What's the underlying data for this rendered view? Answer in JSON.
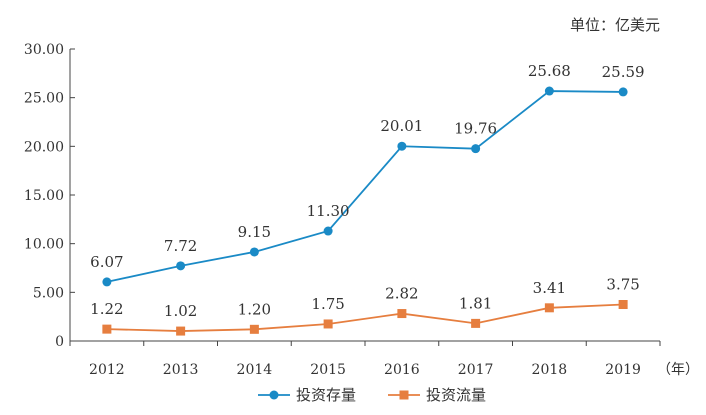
{
  "chart_data": {
    "type": "line",
    "unit_note": "单位：亿美元",
    "x_unit": "（年）",
    "categories": [
      "2012",
      "2013",
      "2014",
      "2015",
      "2016",
      "2017",
      "2018",
      "2019"
    ],
    "y_tick_labels": [
      "0",
      "5.00",
      "10.00",
      "15.00",
      "20.00",
      "25.00",
      "30.00"
    ],
    "ylim": [
      0,
      30
    ],
    "grid": false,
    "legend_position": "bottom",
    "series": [
      {
        "name": "投资存量",
        "color": "#1a8ac6",
        "marker": "circle",
        "values": [
          6.07,
          7.72,
          9.15,
          11.3,
          20.01,
          19.76,
          25.68,
          25.59
        ],
        "labels": [
          "6.07",
          "7.72",
          "9.15",
          "11.30",
          "20.01",
          "19.76",
          "25.68",
          "25.59"
        ]
      },
      {
        "name": "投资流量",
        "color": "#e67e3f",
        "marker": "square",
        "values": [
          1.22,
          1.02,
          1.2,
          1.75,
          2.82,
          1.81,
          3.41,
          3.75
        ],
        "labels": [
          "1.22",
          "1.02",
          "1.20",
          "1.75",
          "2.82",
          "1.81",
          "3.41",
          "3.75"
        ]
      }
    ]
  }
}
